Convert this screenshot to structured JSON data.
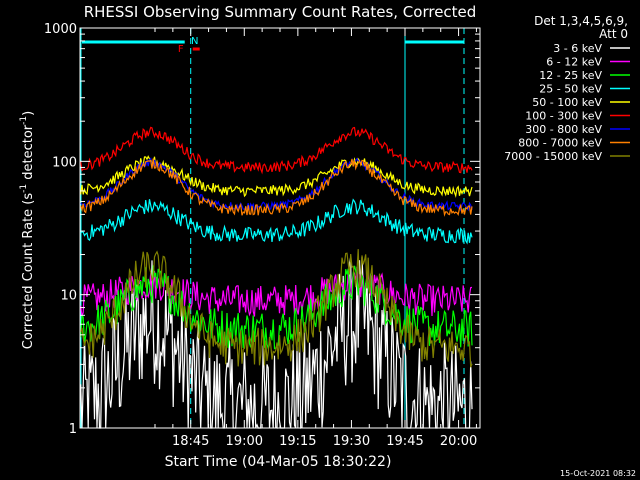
{
  "chart_data": {
    "type": "line",
    "title": "RHESSI Observing Summary Count Rates, Corrected",
    "xlabel": "Start Time (04-Mar-05 18:30:22)",
    "ylabel_main": "Corrected Count Rate (s",
    "ylabel_exp1": "-1",
    "ylabel_mid": " detector",
    "ylabel_exp2": "-1",
    "ylabel_end": ")",
    "y_scale": "log",
    "ylim": [
      1,
      1000
    ],
    "xlim_minutes": [
      -16,
      96
    ],
    "x_ticks": [
      {
        "label": "18:45",
        "min": 15
      },
      {
        "label": "19:00",
        "min": 30
      },
      {
        "label": "19:15",
        "min": 45
      },
      {
        "label": "19:30",
        "min": 60
      },
      {
        "label": "19:45",
        "min": 75
      },
      {
        "label": "20:00",
        "min": 90
      }
    ],
    "y_ticks": [
      {
        "label": "1",
        "value": 1
      },
      {
        "label": "10",
        "value": 10
      },
      {
        "label": "100",
        "value": 100
      },
      {
        "label": "1000",
        "value": 1000
      }
    ],
    "legend_header": [
      "Det 1,3,4,5,6,9,",
      "Att 0"
    ],
    "series": [
      {
        "name": "3 - 6 keV",
        "color": "#ffffff",
        "low": 1.4,
        "high": 6.5,
        "noise": 0.5
      },
      {
        "name": "6 - 12 keV",
        "color": "#ff00ff",
        "low": 9.0,
        "high": 12.0,
        "noise": 0.12
      },
      {
        "name": "12 - 25 keV",
        "color": "#00ff00",
        "low": 5.5,
        "high": 12.0,
        "noise": 0.15
      },
      {
        "name": "25 - 50 keV",
        "color": "#00ffff",
        "low": 28,
        "high": 46,
        "noise": 0.06
      },
      {
        "name": "50 - 100 keV",
        "color": "#ffff00",
        "low": 60,
        "high": 100,
        "noise": 0.04
      },
      {
        "name": "100 - 300 keV",
        "color": "#ff0000",
        "low": 90,
        "high": 165,
        "noise": 0.04
      },
      {
        "name": "300 - 800 keV",
        "color": "#0000ff",
        "low": 46,
        "high": 98,
        "noise": 0.03
      },
      {
        "name": "800 - 7000 keV",
        "color": "#ff8000",
        "low": 43,
        "high": 96,
        "noise": 0.04
      },
      {
        "name": "7000 - 15000 keV",
        "color": "#808000",
        "low": 4.0,
        "high": 16.0,
        "noise": 0.15
      }
    ],
    "annotations": {
      "flags": [
        {
          "label": "F",
          "color": "#ff0000"
        },
        {
          "label": "N",
          "color": "#00ffff"
        }
      ],
      "night_markers_min": [
        15,
        75
      ]
    }
  },
  "timestamp": "15-Oct-2021 08:32",
  "colors": {
    "background": "#000000",
    "axes": "#ffffff",
    "night_bar": "#00ffff",
    "flare_bar": "#ff0000"
  }
}
